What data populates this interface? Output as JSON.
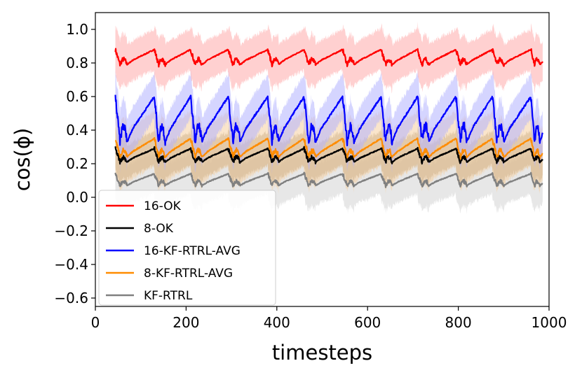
{
  "chart_data": {
    "type": "line",
    "title": "",
    "xlabel": "timesteps",
    "ylabel": "cos(ϕ)",
    "xlim": [
      0,
      1000
    ],
    "ylim": [
      -0.65,
      1.1
    ],
    "x_ticks": [
      0,
      200,
      400,
      600,
      800,
      1000
    ],
    "x_tick_labels": [
      "0",
      "200",
      "400",
      "600",
      "800",
      "1000"
    ],
    "y_ticks": [
      -0.6,
      -0.4,
      -0.2,
      0.0,
      0.2,
      0.4,
      0.6,
      0.8,
      1.0
    ],
    "y_tick_labels": [
      "−0.6",
      "−0.4",
      "−0.2",
      "0.0",
      "0.2",
      "0.4",
      "0.6",
      "0.8",
      "1.0"
    ],
    "grid": false,
    "legend_position": "lower-left",
    "x_range": [
      44,
      986
    ],
    "resets": [
      44,
      130,
      210,
      293,
      380,
      460,
      545,
      630,
      710,
      795,
      875,
      960
    ],
    "series": [
      {
        "name": "16-OK",
        "color": "#ff0000",
        "band_color": "#ffaaaa",
        "peak": 0.88,
        "trough": 0.79,
        "band_width": 0.12
      },
      {
        "name": "8-OK",
        "color": "#000000",
        "band_color": "#d2b48c",
        "peak": 0.29,
        "trough": 0.21,
        "band_width": 0.1
      },
      {
        "name": "16-KF-RTRL-AVG",
        "color": "#0000ff",
        "band_color": "#b3b3ff",
        "peak": 0.6,
        "trough": 0.33,
        "band_width": 0.13
      },
      {
        "name": "8-KF-RTRL-AVG",
        "color": "#ff8c00",
        "band_color": "#f5cfa0",
        "peak": 0.35,
        "trough": 0.24,
        "band_width": 0.16
      },
      {
        "name": "KF-RTRL",
        "color": "#808080",
        "band_color": "#d3d3d3",
        "peak": 0.14,
        "trough": 0.07,
        "band_width": 0.12
      }
    ]
  }
}
